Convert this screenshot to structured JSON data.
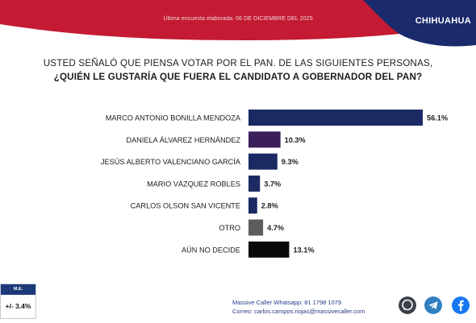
{
  "header": {
    "survey_date": "Última encuesta elaborada: 06 DE DICIEMBRE DEL 2025",
    "state": "CHIHUAHUA",
    "colors": {
      "red": "#c41a33",
      "navy": "#1a2a6c"
    }
  },
  "question": {
    "line1": "USTED SEÑALÓ QUE PIENSA VOTAR POR EL PAN. DE LAS SIGUIENTES PERSONAS,",
    "line2": "¿QUIÉN LE GUSTARÍA QUE FUERA EL CANDIDATO A GOBERNADOR DEL PAN?"
  },
  "chart_data": {
    "type": "bar",
    "orientation": "horizontal",
    "categories": [
      "MARCO ANTONIO BONILLA MENDOZA",
      "DANIELA ÁLVAREZ HERNÁNDEZ",
      "JESÚS ALBERTO VALENCIANO GARCÍA",
      "MARIO VÁZQUEZ ROBLES",
      "CARLOS OLSON SAN VICENTE",
      "OTRO",
      "AÚN NO DECIDE"
    ],
    "values": [
      56.1,
      10.3,
      9.3,
      3.7,
      2.8,
      4.7,
      13.1
    ],
    "value_labels": [
      "56.1%",
      "10.3%",
      "9.3%",
      "3.7%",
      "2.8%",
      "4.7%",
      "13.1%"
    ],
    "bar_colors": [
      "#1c2a63",
      "#3a1f5c",
      "#1c2a63",
      "#1c2a63",
      "#1c2a63",
      "#5c5c5c",
      "#0a0a0a"
    ],
    "xlim": [
      0,
      56.1
    ],
    "grid": false
  },
  "margin_of_error": {
    "label": "M.E.",
    "value": "+/- 3.4%"
  },
  "footer": {
    "whatsapp": "Massive Caller Whatsapp: 81 1798 1079",
    "email": "Correo: carlos.campos.riojas@massivecaller.com"
  },
  "social_icons": [
    "whatsapp-icon",
    "telegram-icon",
    "facebook-icon"
  ]
}
